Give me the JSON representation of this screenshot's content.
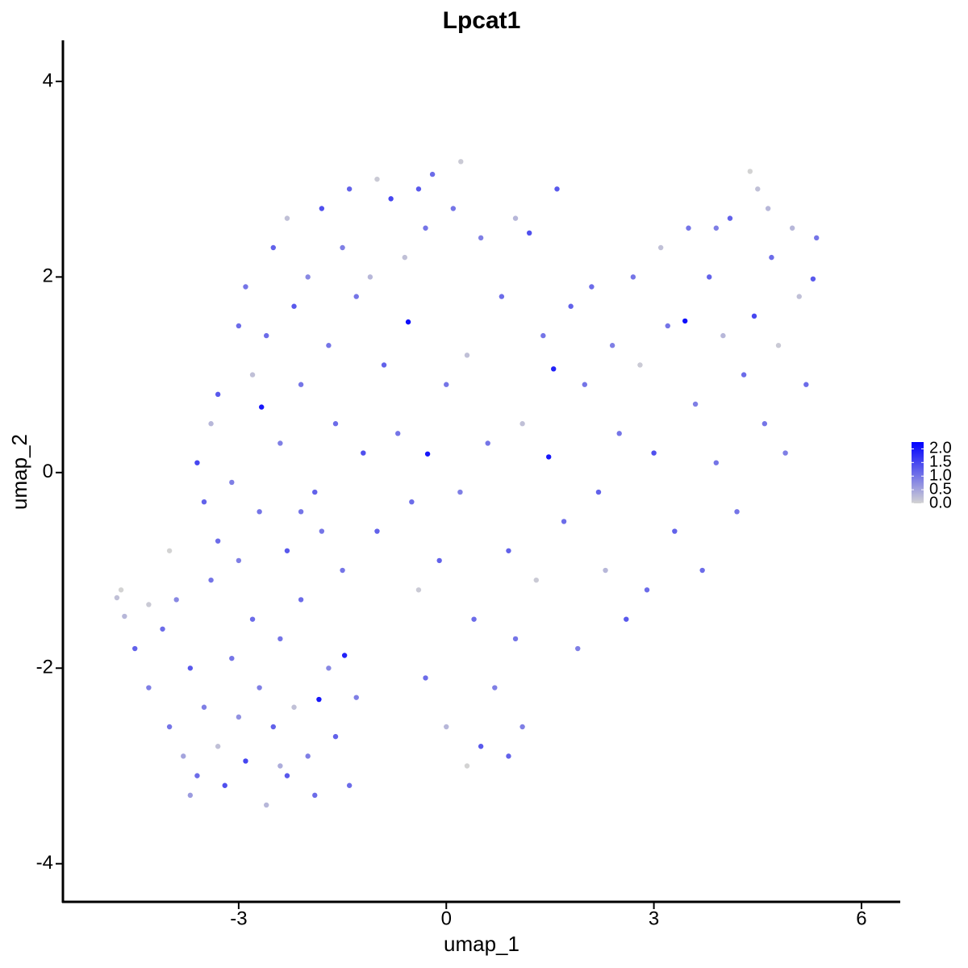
{
  "chart_data": {
    "type": "scatter",
    "title": "Lpcat1",
    "x_label": "umap_1",
    "y_label": "umap_2",
    "xlim": [
      -5.54,
      6.56
    ],
    "ylim": [
      -4.39,
      4.42
    ],
    "xticks": [
      -3,
      0,
      3,
      6
    ],
    "yticks": [
      -4,
      -2,
      0,
      2,
      4
    ],
    "low_color": "#d3d3d3",
    "high_color": "#0000ff",
    "colorlim": [
      0,
      2.25
    ],
    "colorbar_ticks": [
      {
        "value": 0,
        "label": "0.0"
      },
      {
        "value": 0.5,
        "label": "0.5"
      },
      {
        "value": 1,
        "label": "1.0"
      },
      {
        "value": 1.5,
        "label": "1.5"
      },
      {
        "value": 2,
        "label": "2.0"
      }
    ],
    "x": [
      -4.76,
      -4.7,
      -4.65,
      -4.5,
      -4.3,
      -4.1,
      -4.0,
      -3.9,
      -3.8,
      -3.7,
      -3.6,
      -3.5,
      -3.4,
      -3.3,
      -3.2,
      -3.1,
      -3.0,
      -2.9,
      -2.8,
      -2.7,
      -2.6,
      -2.5,
      -2.4,
      -2.3,
      -2.2,
      -2.1,
      -2.0,
      -1.9,
      -1.84,
      -1.7,
      -1.6,
      -1.47,
      -1.4,
      -1.3,
      -1.5,
      -3.3,
      -3.5,
      -3.0,
      -2.7,
      -2.3,
      -1.8,
      -4.3,
      -4.0,
      -3.7,
      -2.4,
      -3.6,
      -3.4,
      -3.3,
      -3.1,
      -3.0,
      -2.9,
      -2.8,
      -2.67,
      -2.6,
      -2.5,
      -2.4,
      -2.3,
      -2.2,
      -2.1,
      -2.0,
      -1.9,
      -1.8,
      -1.7,
      -1.6,
      -1.5,
      -1.4,
      -1.3,
      -1.2,
      -1.1,
      -1.0,
      -0.9,
      -0.8,
      -0.7,
      -0.6,
      -0.55,
      -0.5,
      -2.1,
      -1.0,
      -0.4,
      -0.3,
      -0.27,
      -0.2,
      -0.1,
      0.0,
      0.1,
      0.21,
      0.3,
      0.4,
      0.5,
      0.5,
      0.6,
      0.7,
      0.8,
      0.9,
      1.0,
      1.0,
      1.1,
      1.2,
      1.3,
      1.4,
      1.48,
      1.55,
      1.6,
      1.7,
      1.8,
      1.9,
      2.0,
      0.2,
      -0.3,
      0.3,
      1.1,
      0.9,
      0.0,
      -0.4,
      2.1,
      2.2,
      2.4,
      2.5,
      2.6,
      2.7,
      2.8,
      2.9,
      3.0,
      3.1,
      3.2,
      3.3,
      3.45,
      3.5,
      3.6,
      3.7,
      3.8,
      3.9,
      4.0,
      4.1,
      4.2,
      4.3,
      4.39,
      4.45,
      4.5,
      4.6,
      4.7,
      4.8,
      4.9,
      5.0,
      5.1,
      5.2,
      5.3,
      5.35,
      4.65,
      3.9,
      2.3
    ],
    "y": [
      -1.28,
      -1.2,
      -1.47,
      -1.8,
      -2.2,
      -1.6,
      -2.6,
      -1.3,
      -2.9,
      -2.0,
      -3.1,
      -2.4,
      -1.1,
      -2.8,
      -3.2,
      -1.9,
      -2.5,
      -2.95,
      -1.5,
      -2.2,
      -3.4,
      -2.6,
      -1.7,
      -3.1,
      -2.4,
      -1.3,
      -2.9,
      -3.3,
      -2.32,
      -2.0,
      -2.7,
      -1.87,
      -3.2,
      -2.3,
      -1.0,
      -0.7,
      -0.3,
      -0.9,
      -0.4,
      -0.8,
      -0.6,
      -1.35,
      -0.8,
      -3.3,
      -3.0,
      0.1,
      0.5,
      0.8,
      -0.1,
      1.5,
      1.9,
      1.0,
      0.67,
      1.4,
      2.3,
      0.3,
      2.6,
      1.7,
      0.9,
      2.0,
      -0.2,
      2.7,
      1.3,
      0.5,
      2.3,
      2.9,
      1.8,
      0.2,
      2.0,
      3.0,
      1.1,
      2.8,
      0.4,
      2.2,
      1.54,
      -0.3,
      -0.4,
      -0.6,
      2.9,
      2.5,
      0.19,
      3.05,
      -0.9,
      -2.6,
      2.7,
      3.18,
      1.2,
      -1.5,
      2.4,
      -2.8,
      0.3,
      -2.2,
      1.8,
      -0.8,
      2.6,
      -1.7,
      0.5,
      2.45,
      -1.1,
      1.4,
      0.16,
      1.06,
      2.9,
      -0.5,
      1.7,
      -1.8,
      0.9,
      -0.2,
      -2.1,
      -3.0,
      -2.6,
      -2.9,
      0.9,
      -1.2,
      1.9,
      -0.2,
      1.3,
      0.4,
      -1.5,
      2.0,
      1.1,
      -1.2,
      0.2,
      2.3,
      1.5,
      -0.6,
      1.55,
      2.5,
      0.7,
      -1.0,
      2.0,
      0.1,
      1.4,
      2.6,
      -0.4,
      1.0,
      3.08,
      1.6,
      2.9,
      0.5,
      2.2,
      1.3,
      0.2,
      2.5,
      1.8,
      0.9,
      1.98,
      2.4,
      2.7,
      2.5,
      -1.0
    ],
    "expression": [
      0.2,
      0,
      0.3,
      1.2,
      0.9,
      1.1,
      1.0,
      0.8,
      0.5,
      1.3,
      1.1,
      0.9,
      1.0,
      0.2,
      1.4,
      1.0,
      0.7,
      1.5,
      1.1,
      0.9,
      0.3,
      1.2,
      1.0,
      1.3,
      0.2,
      1.1,
      0.9,
      1.1,
      2.0,
      0.8,
      1.2,
      1.9,
      1.1,
      0.9,
      1.0,
      1.1,
      1.2,
      0.9,
      1.0,
      1.3,
      1.0,
      0.1,
      0,
      0.6,
      0.4,
      1.5,
      0.3,
      1.3,
      0.9,
      1.1,
      1.0,
      0.2,
      2.0,
      1.1,
      1.2,
      0.9,
      0.2,
      1.3,
      1.0,
      0.8,
      1.2,
      1.4,
      1.0,
      1.1,
      0.9,
      1.2,
      1.0,
      1.4,
      0.3,
      0.1,
      1.2,
      1.5,
      1.0,
      0.2,
      2.1,
      1.1,
      1.0,
      1.2,
      1.3,
      1.0,
      2.0,
      1.1,
      1.2,
      0.3,
      1.0,
      0.1,
      0.2,
      1.1,
      0.9,
      1.3,
      1.0,
      0.9,
      1.1,
      1.2,
      0.3,
      1.0,
      0.2,
      1.4,
      0.1,
      1.0,
      2.0,
      1.9,
      1.3,
      1.1,
      1.2,
      0.9,
      1.0,
      0.9,
      1.1,
      0,
      0.9,
      1.2,
      1.0,
      0.1,
      1.1,
      1.2,
      0.9,
      1.0,
      1.3,
      1.0,
      0.1,
      1.1,
      1.4,
      0.2,
      1.0,
      1.2,
      2.1,
      1.0,
      0.9,
      1.1,
      1.2,
      1.0,
      0.3,
      1.2,
      1.0,
      1.1,
      0,
      1.5,
      0.2,
      1.0,
      1.1,
      0.1,
      0.9,
      0.3,
      0.2,
      1.1,
      1.3,
      1.0,
      0.3,
      0.9,
      0.3
    ]
  }
}
